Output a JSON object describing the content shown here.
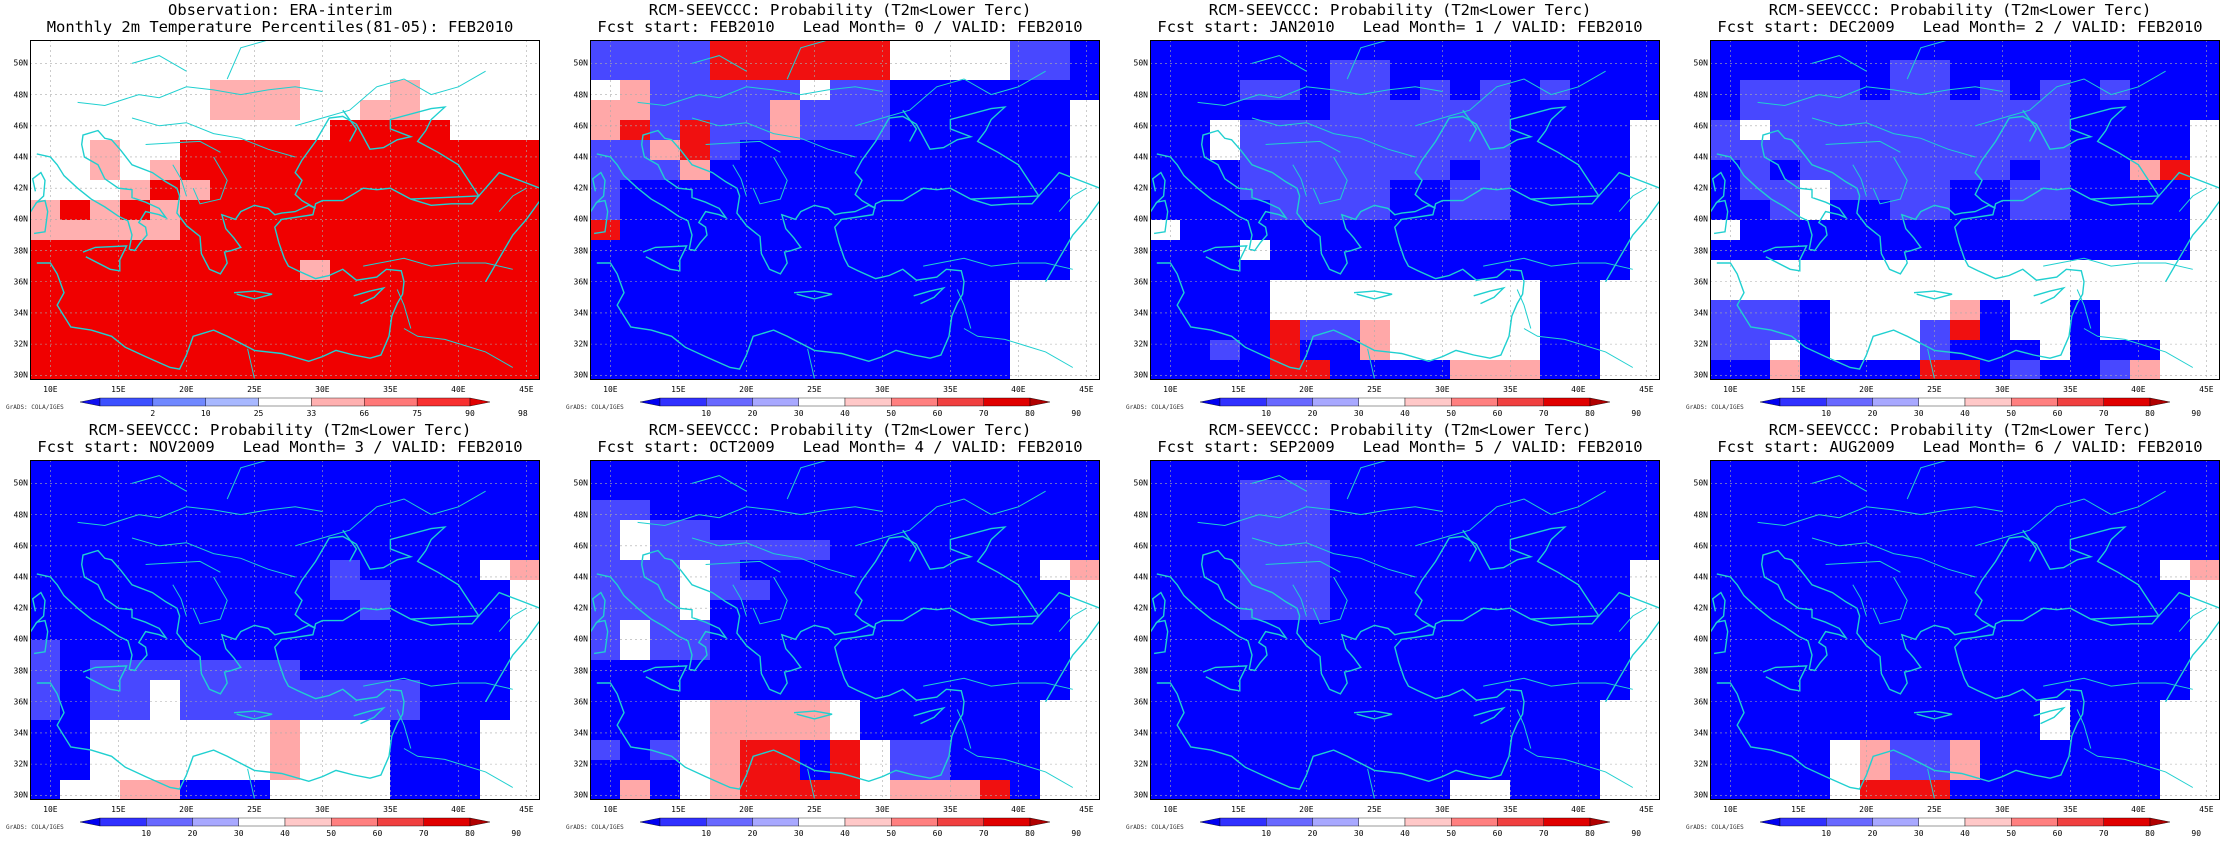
{
  "panels": [
    {
      "title1": "Observation: ERA-interim",
      "title2": "Monthly 2m Temperature Percentiles(81-05): FEB2010",
      "palette": "obs",
      "grid": [
        "wwwwwwwwwwwwwwwww",
        "wwwwwwwwwwwwwwwww",
        "wwwwwwlllwwwlwwww",
        "wwwwwwlllwwllwwww",
        "wwwwwwwwwwrrrrwww",
        "wwlwwrrrrrrrrrrrr",
        "wwlwlrrrrrrrrrrrr",
        "wwwlrlrrrrrrrrrrr",
        "lrlrlrrrrrrrrrrrr",
        "lllllrrrrrrrrrrrr",
        "rrrrrrrrrrrrrrrrr",
        "rrrrrrrrrlrrrrrrr",
        "rrrrrrrrrrrrrrrrr",
        "rrrrrrrrrrrrrrrrr",
        "rrrrrrrrrrrrrrrrr",
        "rrrrrrrrrrrrrrrrr",
        "rrrrrrrrrrrrrrrrr"
      ],
      "cb_labels": [
        "2",
        "10",
        "25",
        "33",
        "66",
        "75",
        "90",
        "98"
      ]
    },
    {
      "title1": "RCM-SEEVCCC: Probability (T2m<Lower Terc)",
      "title2": "Fcst start: FEB2010   Lead Month= 0 / VALID: FEB2010",
      "palette": "prob",
      "grid": [
        "bbbbRRRRRRwwwwbbB",
        "bbbbRRRRRRwwwwbbB",
        "wLbbbbbwbbBBBBBBB",
        "LLbbbbLbbbBBBBBBw",
        "LRbRbbLbbbBBBBBBw",
        "bbLRbBBBBBBBBBBBw",
        "bbbLBBBBBBBBBBBBw",
        "bBBBBBBBBBBBBBBBw",
        "bBBBBBBBBBBBBBBBw",
        "RBBBBBBBBBBBBBBBw",
        "BBBBBBBBBBBBBBBBw",
        "BBBBBBBBBBBBBBBBw",
        "BBBBBBBBBBBBBBwww",
        "BBBBBBBBBBBBBBwww",
        "BBBBBBBBBBBBBBwww",
        "BBBBBBBBBBBBBBwww",
        "BBBBBBBBBBBBBBwww"
      ],
      "cb_labels": [
        "10",
        "20",
        "30",
        "40",
        "50",
        "60",
        "70",
        "80",
        "90"
      ]
    },
    {
      "title1": "RCM-SEEVCCC: Probability (T2m<Lower Terc)",
      "title2": "Fcst start: JAN2010   Lead Month= 1 / VALID: FEB2010",
      "palette": "prob",
      "grid": [
        "BBBBBBBBBBBBBBBBB",
        "BBBBBBbbBBBBBBBBB",
        "BBBbbBbbBbBbBbBBB",
        "BBBBBBbbbbbbBBBBB",
        "BBwbbbbbbbbbBBBBw",
        "BBwbbbbbbbbbBBBBw",
        "BBBbbbbbbbBbBBBBw",
        "BBBbbbbbBBbbBBBBw",
        "BBBBbbbbBBbbBBBBw",
        "wBBBBBBBBBBBBBBBw",
        "BBBwBBBBBBBBBBBBw",
        "BBBBBBBBBBBBBBBBw",
        "BBBBwwwwwwwwwBBww",
        "BBBBwwwwwwwwwBBww",
        "BBBBRbbLwwwwwBBww",
        "BBbBRBBLwwwwwBBww",
        "BBBBRRBBBBLLLBBww"
      ],
      "cb_labels": [
        "10",
        "20",
        "30",
        "40",
        "50",
        "60",
        "70",
        "80",
        "90"
      ]
    },
    {
      "title1": "RCM-SEEVCCC: Probability (T2m<Lower Terc)",
      "title2": "Fcst start: DEC2009   Lead Month= 2 / VALID: FEB2010",
      "palette": "prob",
      "grid": [
        "BBBBBBBBBBBBBBBBB",
        "BBBBBBbbBBBBBBBBB",
        "BbbbbBbbBbBbBbBBB",
        "BbbbbbbbbbbbBBBBB",
        "bwbbbbbbbbbbBBBBw",
        "bbbbbbbbbbbbBBBBw",
        "BbBbbbbbbbBbBBLRw",
        "BbbwbbbbBBbbBBBBw",
        "BBbwBBbbBBbbBBBBw",
        "wBBBBBBBBBBBBBBBw",
        "BBBBBBBBBBBBBBBBw",
        "wwwwwwwwwwwwwwwww",
        "wwwwwwwwwwwwwwwww",
        "bbbBwwwwLBwwBwwww",
        "bbbBwwwbRBwwBwwww",
        "bbwBwwwbBBBwBBBww",
        "BBLBBBBRRBbBBbLww"
      ],
      "cb_labels": [
        "10",
        "20",
        "30",
        "40",
        "50",
        "60",
        "70",
        "80",
        "90"
      ]
    },
    {
      "title1": "RCM-SEEVCCC: Probability (T2m<Lower Terc)",
      "title2": "Fcst start: NOV2009   Lead Month= 3 / VALID: FEB2010",
      "palette": "prob",
      "grid": [
        "BBBBBBBBBBBBBBBBB",
        "BBBBBBBBBBBBBBBBB",
        "BBBBBBBBBBBBBBBBB",
        "BBBBBBBBBBBBBBBBB",
        "BBBBBBBBBBBBBBBBB",
        "BBBBBBBBBBbBBBBwL",
        "BBBBBBBBBBbbBBBBw",
        "BBBBBBBBBBBbBBBBw",
        "BBBBBBBBBBBBBBBBw",
        "bBBBBBBBBBBBBBBBw",
        "bBbbbbbbbBBBBBBBw",
        "bBbbwbbbbbbbbBBBw",
        "bBbbwbbbbbbbbBBBw",
        "BBwwwwwwLwwwBBBww",
        "BBwwwwwwLwwwBBBww",
        "BBwwwwwwLwwwBBBww",
        "BwwLLBBBwwwwBBBww"
      ],
      "cb_labels": [
        "10",
        "20",
        "30",
        "40",
        "50",
        "60",
        "70",
        "80",
        "90"
      ]
    },
    {
      "title1": "RCM-SEEVCCC: Probability (T2m<Lower Terc)",
      "title2": "Fcst start: OCT2009   Lead Month= 4 / VALID: FEB2010",
      "palette": "prob",
      "grid": [
        "BBBBBBBBBBBBBBBBB",
        "BBBBBBBBBBBBBBBBB",
        "bbBBBBBBBBBBBBBBB",
        "bwbbBBBBBBBBBBBBB",
        "bwbbbbbbBBBBBBBBB",
        "bbbwbBBBBBBBBBBwL",
        "bbbwbbBBBBBBBBBBw",
        "bbbwBBBBBBBBBBBBw",
        "bwbbBBBBBBBBBBBBw",
        "bwbbBBBBBBBBBBBBw",
        "BBBBBBBBBBBBBBBBw",
        "BBBBBBBBBBBBBBBBw",
        "BBBwLLLLwBBBBBBww",
        "BBBwLLLLwBBBBBBww",
        "bBbwLRRBRwbbBBBww",
        "BBBwLRRBRwbbBBBww",
        "BLBwLRRRRwLLLRBww"
      ],
      "cb_labels": [
        "10",
        "20",
        "30",
        "40",
        "50",
        "60",
        "70",
        "80",
        "90"
      ]
    },
    {
      "title1": "RCM-SEEVCCC: Probability (T2m<Lower Terc)",
      "title2": "Fcst start: SEP2009   Lead Month= 5 / VALID: FEB2010",
      "palette": "prob",
      "grid": [
        "BBBBBBBBBBBBBBBBB",
        "BBBbbbBBBBBBBBBBB",
        "BBBbbbBBBBBBBBBBB",
        "BBBbbbBBBBBBBBBBB",
        "BBBbbbBBBBBBBBBBB",
        "BBBbbbBBBBBBBBBBw",
        "BBBbbbBBBBBBBBBBw",
        "BBBbbbBBBBBBBBBBw",
        "BBBBBBBBBBBBBBBBw",
        "BBBBBBBBBBBBBBBBw",
        "BBBBBBBBBBBBBBBBw",
        "BBBBBBBBBBBBBBBBw",
        "BBBBBBBBBBBBBBBww",
        "BBBBBBBBBBBBBBBww",
        "BBBBBBBBBBBBBBBww",
        "BBBBBBBBBBBBBBBww",
        "BBBBBBBBBBwwBBBww"
      ],
      "cb_labels": [
        "10",
        "20",
        "30",
        "40",
        "50",
        "60",
        "70",
        "80",
        "90"
      ]
    },
    {
      "title1": "RCM-SEEVCCC: Probability (T2m<Lower Terc)",
      "title2": "Fcst start: AUG2009   Lead Month= 6 / VALID: FEB2010",
      "palette": "prob",
      "grid": [
        "BBBBBBBBBBBBBBBBB",
        "BBBBBBBBBBBBBBBBB",
        "BBBBBBBBBBBBBBBBB",
        "BBBBBBBBBBBBBBBBB",
        "BBBBBBBBBBBBBBBBB",
        "BBBBBBBBBBBBBBBwL",
        "BBBBBBBBBBBBBBBBw",
        "BBBBBBBBBBBBBBBBw",
        "BBBBBBBBBBBBBBBBw",
        "BBBBBBBBBBBBBBBBw",
        "BBBBBBBBBBBBBBBBw",
        "BBBBBBBBBBBBBBBBw",
        "BBBBBBBBBBBwBBBww",
        "BBBBBBBBBBBwBBBww",
        "BBBBwLbbLBBBBBBww",
        "BBBBwLbbLBBBBBBww",
        "BBBBwRRRBBBBBBBww"
      ],
      "cb_labels": [
        "10",
        "20",
        "30",
        "40",
        "50",
        "60",
        "70",
        "80",
        "90"
      ]
    }
  ],
  "palettes": {
    "obs": {
      "w": "#ffffff",
      "l": "#ffb0b0",
      "m": "#f85060",
      "r": "#f00000",
      "bar": [
        "#1010f0",
        "#3c50ff",
        "#7088ff",
        "#a8b8ff",
        "#ffffff",
        "#ffb0b0",
        "#ff7878",
        "#f83030",
        "#e00000"
      ]
    },
    "prob": {
      "w": "#ffffff",
      "B": "#0000ff",
      "b": "#4848ff",
      "L": "#ffa8a8",
      "R": "#f01010",
      "bar": [
        "#0000f0",
        "#3030ff",
        "#6868ff",
        "#a8a8ff",
        "#ffffff",
        "#ffc8c8",
        "#ff8080",
        "#f04040",
        "#e00000",
        "#b00000"
      ]
    }
  },
  "lat_ticks": [
    "50N",
    "48N",
    "46N",
    "44N",
    "42N",
    "40N",
    "38N",
    "36N",
    "34N",
    "32N",
    "30N"
  ],
  "lon_ticks": [
    "10E",
    "15E",
    "20E",
    "25E",
    "30E",
    "35E",
    "40E",
    "45E"
  ],
  "grads_label": "GrADS: COLA/IGES",
  "colors": {
    "coastline": "#20d0d0",
    "grid": "#aaaaaa"
  }
}
